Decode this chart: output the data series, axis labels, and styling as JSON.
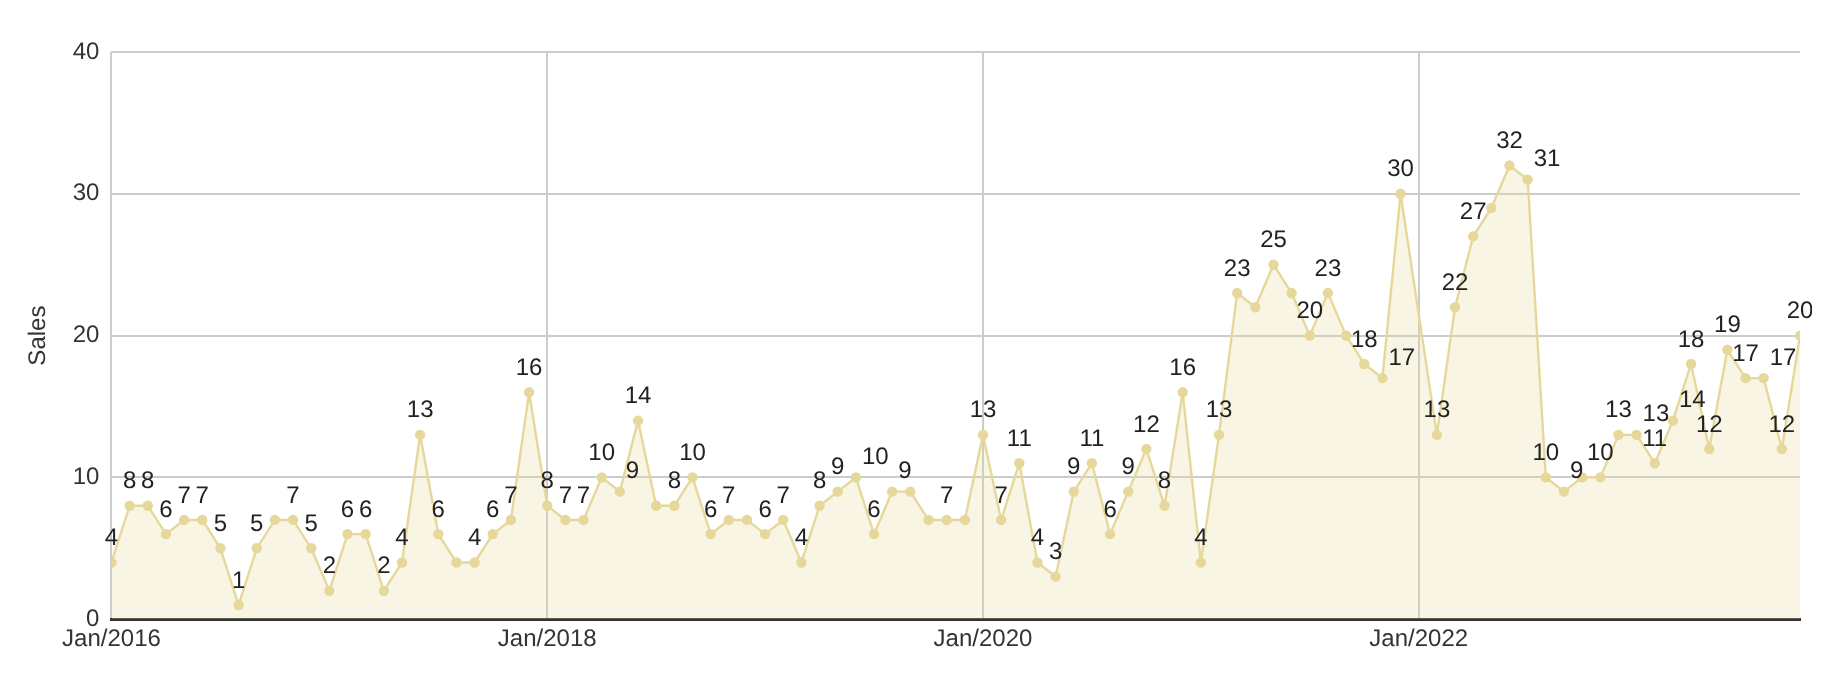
{
  "chart_data": {
    "type": "area",
    "ylabel": "Sales",
    "x": [
      "2016-01",
      "2016-02",
      "2016-03",
      "2016-04",
      "2016-05",
      "2016-06",
      "2016-07",
      "2016-08",
      "2016-09",
      "2016-10",
      "2016-11",
      "2016-12",
      "2017-01",
      "2017-02",
      "2017-03",
      "2017-04",
      "2017-05",
      "2017-06",
      "2017-07",
      "2017-08",
      "2017-09",
      "2017-10",
      "2017-11",
      "2017-12",
      "2018-01",
      "2018-02",
      "2018-03",
      "2018-04",
      "2018-05",
      "2018-06",
      "2018-07",
      "2018-08",
      "2018-09",
      "2018-10",
      "2018-11",
      "2018-12",
      "2019-01",
      "2019-02",
      "2019-03",
      "2019-04",
      "2019-05",
      "2019-06",
      "2019-07",
      "2019-08",
      "2019-09",
      "2019-10",
      "2019-11",
      "2019-12",
      "2020-01",
      "2020-02",
      "2020-03",
      "2020-04",
      "2020-05",
      "2020-06",
      "2020-07",
      "2020-08",
      "2020-09",
      "2020-10",
      "2020-11",
      "2020-12",
      "2021-01",
      "2021-02",
      "2021-03",
      "2021-04",
      "2021-05",
      "2021-06",
      "2021-07",
      "2021-08",
      "2021-09",
      "2021-10",
      "2021-11",
      "2021-12",
      "2022-02",
      "2022-03",
      "2022-04",
      "2022-05",
      "2022-06",
      "2022-07",
      "2022-08",
      "2022-09",
      "2022-10",
      "2022-11",
      "2022-12",
      "2023-01",
      "2023-02",
      "2023-03",
      "2023-04",
      "2023-05",
      "2023-06",
      "2023-07",
      "2023-08",
      "2023-09",
      "2023-10"
    ],
    "values": [
      4,
      8,
      8,
      6,
      7,
      7,
      5,
      1,
      5,
      7,
      7,
      5,
      2,
      6,
      6,
      2,
      4,
      13,
      6,
      4,
      4,
      6,
      7,
      16,
      8,
      7,
      7,
      10,
      9,
      14,
      8,
      8,
      10,
      6,
      7,
      7,
      6,
      7,
      4,
      8,
      9,
      10,
      6,
      9,
      9,
      7,
      7,
      7,
      13,
      7,
      11,
      4,
      3,
      9,
      11,
      6,
      9,
      12,
      8,
      16,
      4,
      13,
      23,
      22,
      25,
      23,
      20,
      23,
      20,
      18,
      17,
      30,
      13,
      22,
      27,
      29,
      32,
      31,
      10,
      9,
      10,
      10,
      13,
      13,
      11,
      14,
      18,
      12,
      19,
      17,
      17,
      12,
      20
    ],
    "value_labels": [
      "4",
      "8",
      "8",
      "6",
      "7",
      "7",
      "5",
      "1",
      "5",
      null,
      "7",
      "5",
      "2",
      "6",
      "6",
      "2",
      "4",
      "13",
      "6",
      null,
      "4",
      "6",
      "7",
      "16",
      "8",
      "7",
      "7",
      "10",
      "9",
      "14",
      null,
      "8",
      "10",
      "6",
      "7",
      null,
      "6",
      "7",
      "4",
      "8",
      "9",
      "10",
      "6",
      "9",
      null,
      null,
      "7",
      null,
      "13",
      "7",
      "11",
      "4",
      "3",
      "9",
      "11",
      "6",
      "9",
      "12",
      "8",
      "16",
      "4",
      "13",
      "23",
      null,
      "25",
      null,
      "20",
      "23",
      null,
      "18",
      "17",
      "30",
      "13",
      "22",
      "27",
      null,
      "32",
      "31",
      "10",
      "9",
      null,
      "10",
      "13",
      "13",
      "11",
      "14",
      "18",
      "12",
      "19",
      "17",
      "17",
      "12",
      "20"
    ],
    "color": "#e6d89a",
    "xlim": [
      "2016-01",
      "2023-10"
    ],
    "xticks": [
      {
        "value": "2016-01",
        "label": "Jan/2016"
      },
      {
        "value": "2018-01",
        "label": "Jan/2018"
      },
      {
        "value": "2020-01",
        "label": "Jan/2020"
      },
      {
        "value": "2022-01",
        "label": "Jan/2022"
      }
    ],
    "ylim": [
      0,
      40
    ],
    "yticks": [
      0,
      10,
      20,
      30,
      40
    ],
    "grid": true,
    "marker": "circle",
    "legend": false
  }
}
